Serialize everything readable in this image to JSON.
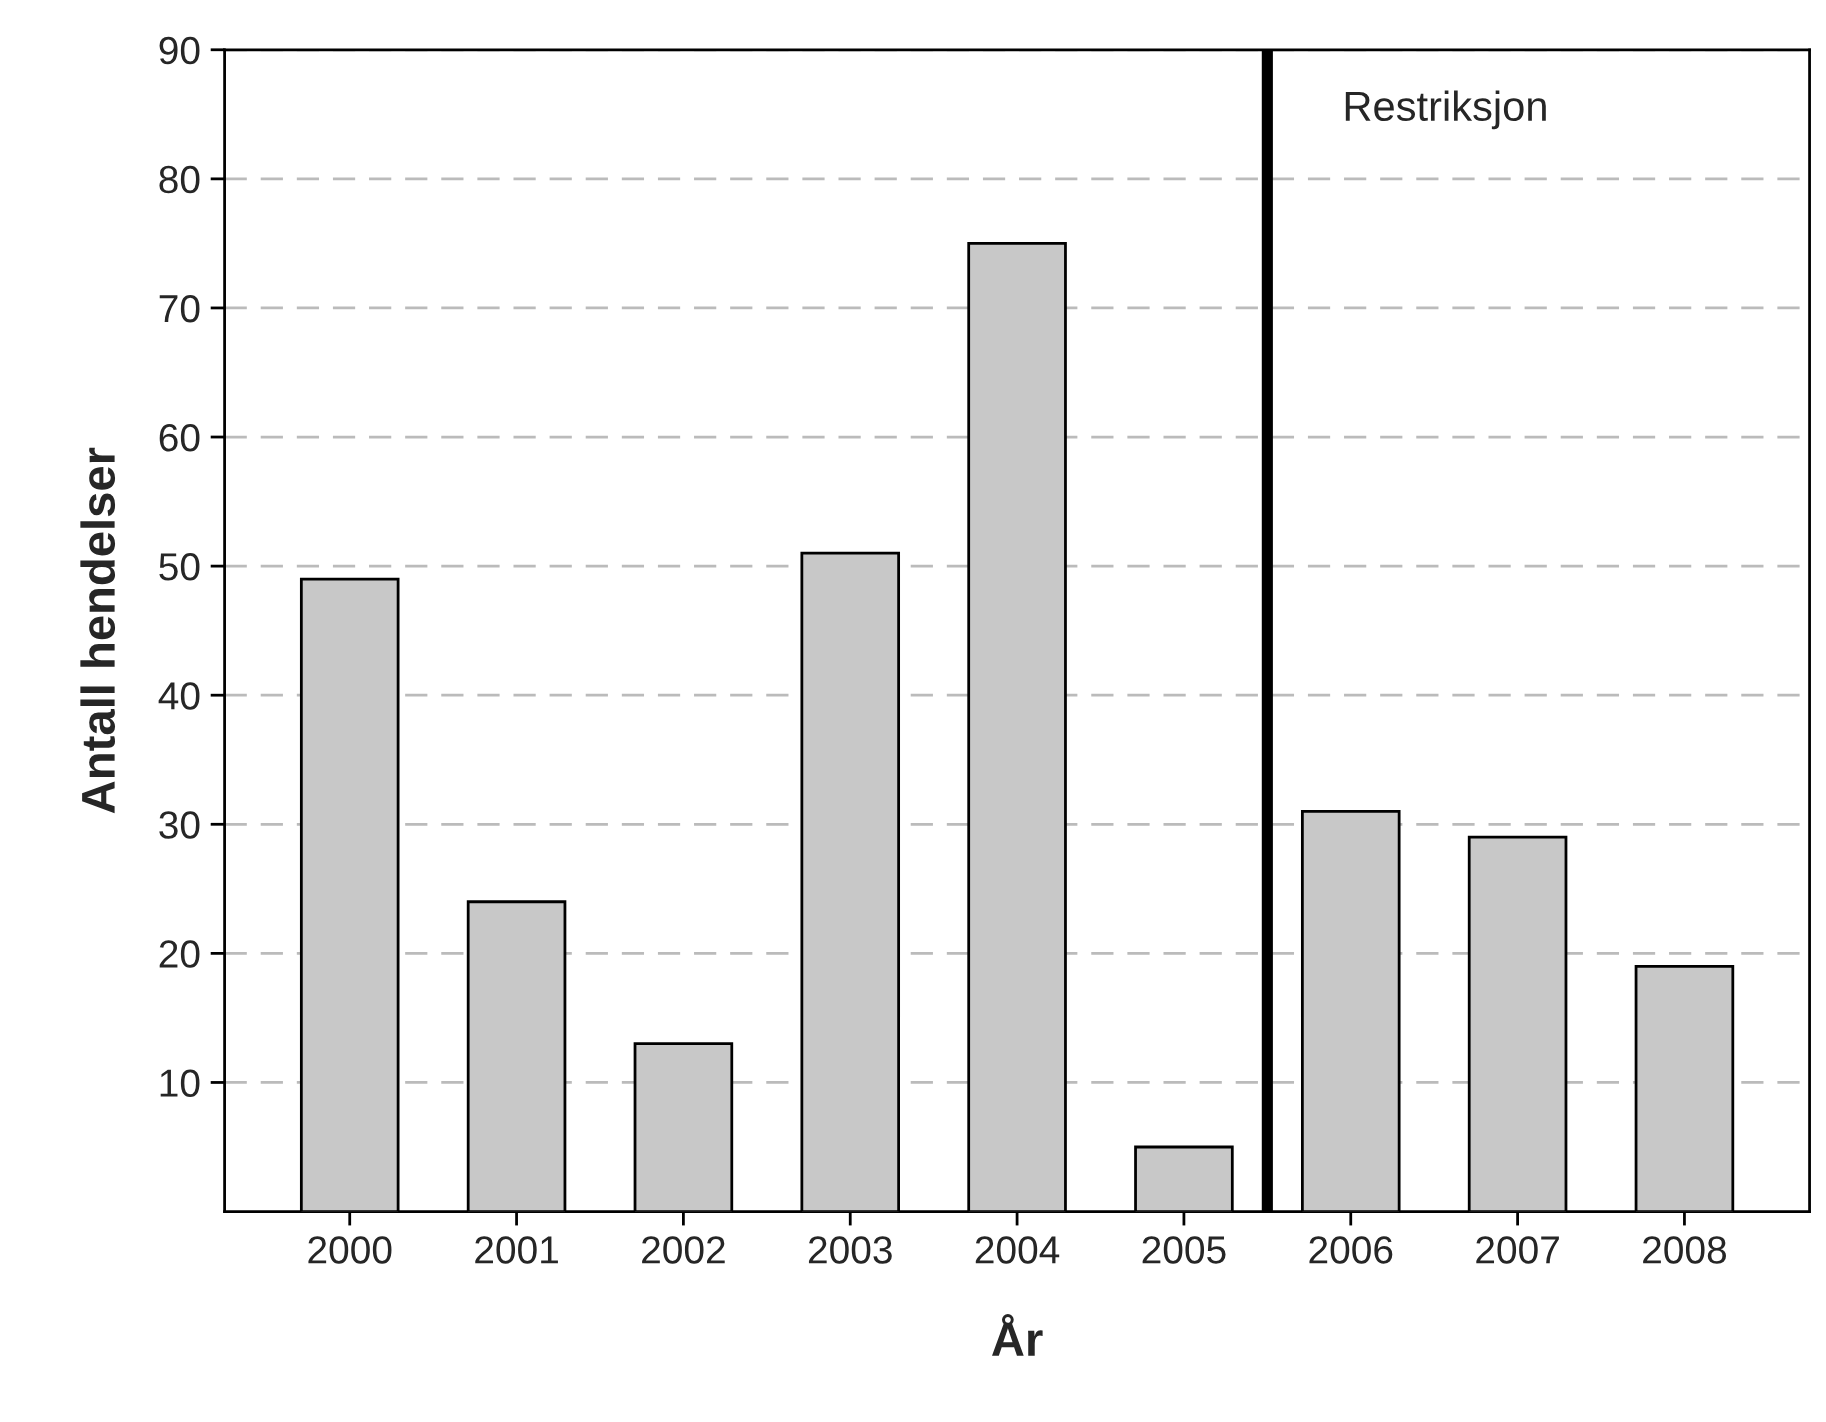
{
  "chart_data": {
    "type": "bar",
    "xlabel": "År",
    "ylabel": "Antall hendelser",
    "x": [
      2000,
      2001,
      2002,
      2003,
      2004,
      2005,
      2006,
      2007,
      2008
    ],
    "values": [
      49,
      24,
      13,
      51,
      75,
      5,
      31,
      29,
      19
    ],
    "color": "#c8c8c8",
    "xlim": [
      1999.25,
      2008.75
    ],
    "xticks": [
      2000,
      2001,
      2002,
      2003,
      2004,
      2005,
      2006,
      2007,
      2008
    ],
    "ylim": [
      0,
      90
    ],
    "yticks": [
      10,
      20,
      30,
      40,
      50,
      60,
      70,
      80,
      90
    ],
    "grid": "y",
    "ref_lines": [
      {
        "axis": "x",
        "value": 2005.5,
        "label": "Restriksjon",
        "color": "#000000",
        "line_style": "solid"
      }
    ]
  }
}
